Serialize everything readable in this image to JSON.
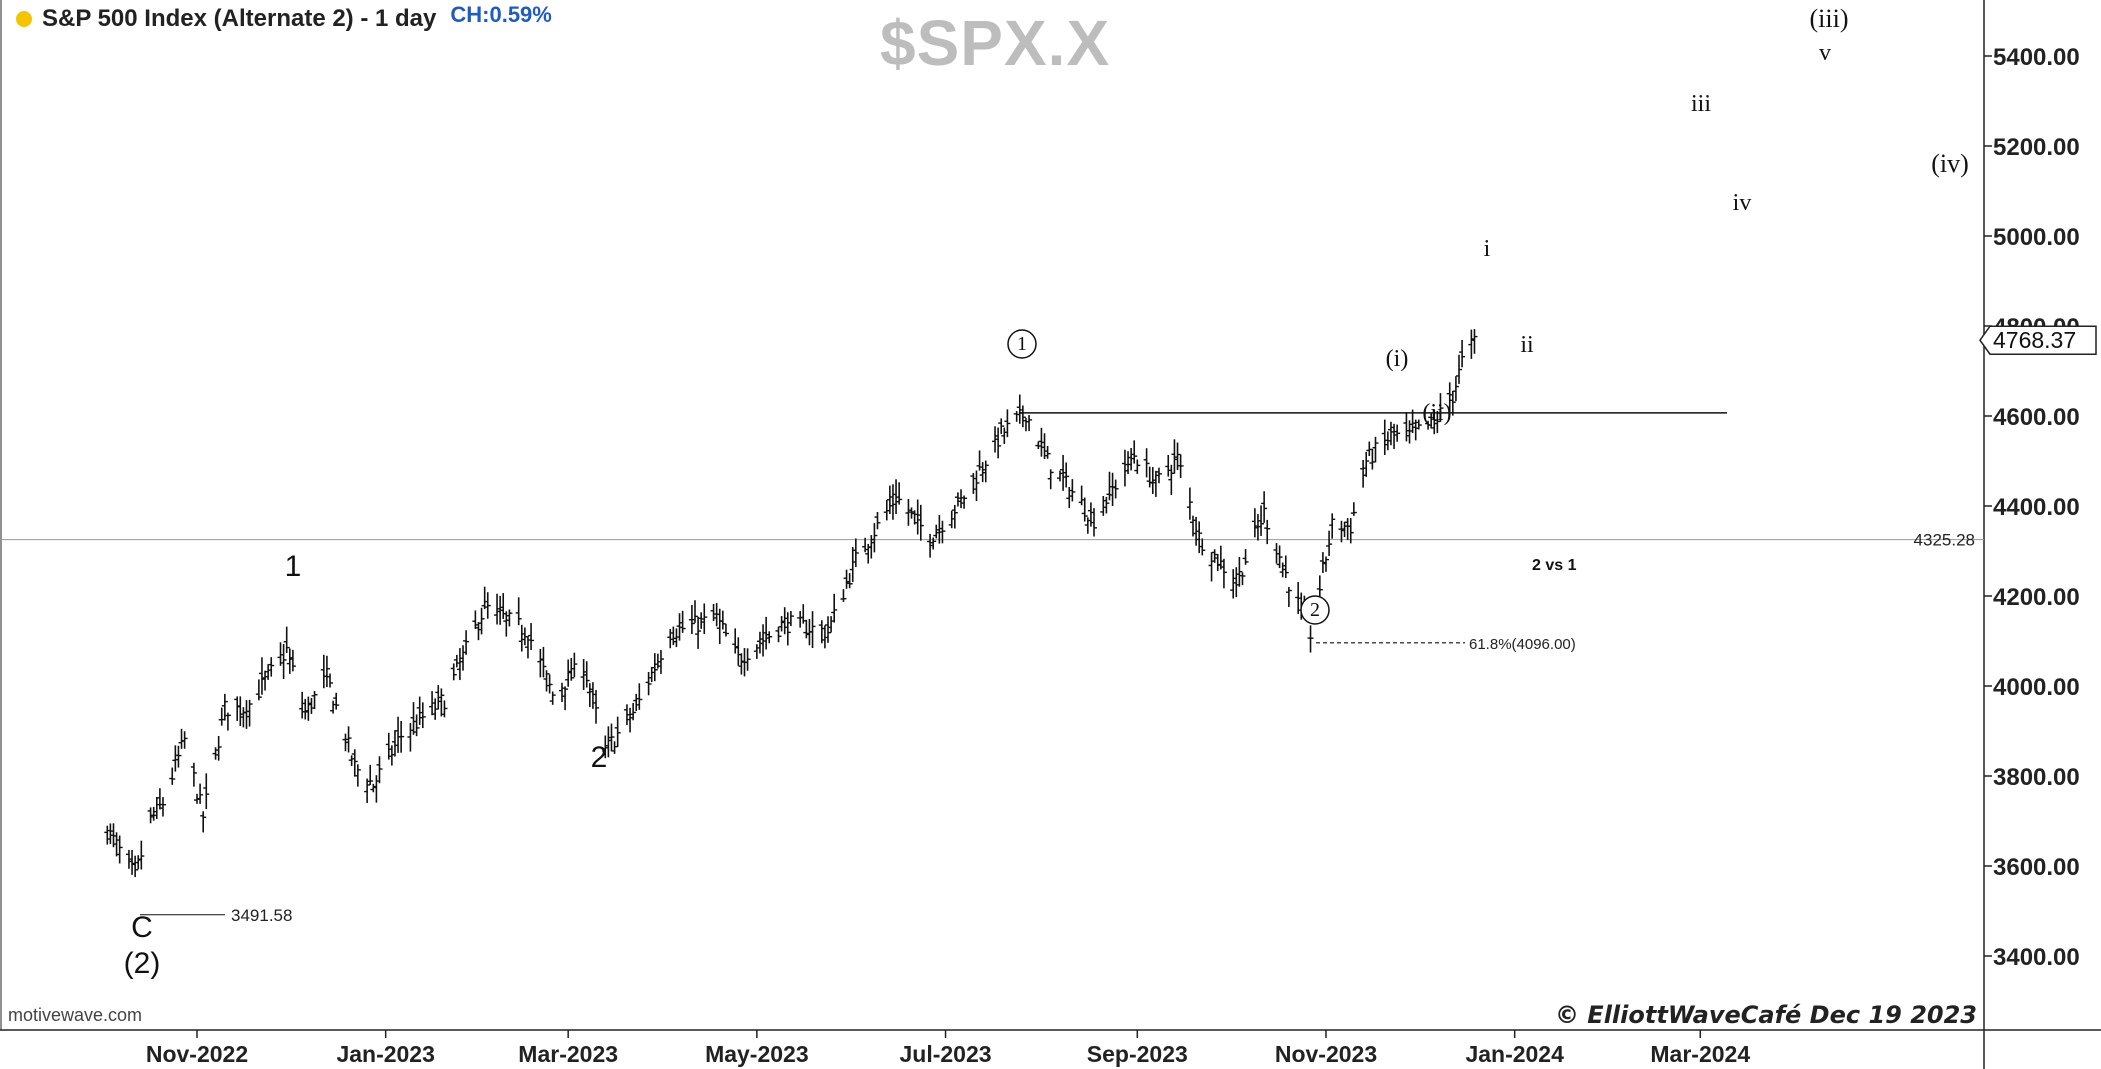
{
  "header": {
    "title": "S&P 500 Index (Alternate 2) - 1 day",
    "change": "CH:0.59%",
    "symbol": "$SPX.X"
  },
  "footer": {
    "source": "motivewave.com",
    "copyright": "© ElliottWaveCafé Dec 19 2023"
  },
  "colors": {
    "status_dot": "#f5c400",
    "change_text": "#1e5bc6",
    "watermark": "#bdbdbd",
    "bars": "#111111"
  },
  "chart_data": {
    "type": "ohlc",
    "title": "",
    "xlabel": "",
    "ylabel": "",
    "y_range": [
      3250,
      5500
    ],
    "y_ticks": [
      "5400.00",
      "5200.00",
      "5000.00",
      "4800.00",
      "4600.00",
      "4400.00",
      "4200.00",
      "4000.00",
      "3800.00",
      "3600.00",
      "3400.00"
    ],
    "x_ticks": [
      "Nov-2022",
      "Jan-2023",
      "Mar-2023",
      "May-2023",
      "Jul-2023",
      "Sep-2023",
      "Nov-2023",
      "Jan-2024",
      "Mar-2024"
    ],
    "current_price": "4768.37",
    "h_reference": {
      "value": 4325.28,
      "label": "4325.28"
    },
    "wave_1_level": 4607,
    "low_marker": {
      "value": 3491.58,
      "label": "3491.58"
    },
    "fib_level": {
      "value": 4096,
      "label": "61.8%(4096.00)",
      "note": "2 vs 1"
    },
    "wave_labels": [
      "C",
      "(2)",
      "1",
      "2",
      "1",
      "2",
      "(i)",
      "(ii)",
      "i",
      "ii",
      "iii",
      "iv",
      "v",
      "(iii)",
      "(iv)"
    ],
    "price_path": [
      {
        "date": "2022-10-03",
        "value": 3680
      },
      {
        "date": "2022-10-12",
        "value": 3575
      },
      {
        "date": "2022-10-17",
        "value": 3700
      },
      {
        "date": "2022-10-21",
        "value": 3740
      },
      {
        "date": "2022-10-28",
        "value": 3880
      },
      {
        "date": "2022-11-03",
        "value": 3710
      },
      {
        "date": "2022-11-10",
        "value": 3950
      },
      {
        "date": "2022-11-17",
        "value": 3950
      },
      {
        "date": "2022-11-30",
        "value": 4080
      },
      {
        "date": "2022-12-06",
        "value": 3940
      },
      {
        "date": "2022-12-13",
        "value": 4020
      },
      {
        "date": "2022-12-22",
        "value": 3820
      },
      {
        "date": "2022-12-28",
        "value": 3780
      },
      {
        "date": "2023-01-06",
        "value": 3890
      },
      {
        "date": "2023-01-20",
        "value": 3970
      },
      {
        "date": "2023-02-02",
        "value": 4175
      },
      {
        "date": "2023-02-16",
        "value": 4120
      },
      {
        "date": "2023-02-24",
        "value": 3980
      },
      {
        "date": "2023-03-06",
        "value": 4050
      },
      {
        "date": "2023-03-13",
        "value": 3855
      },
      {
        "date": "2023-03-23",
        "value": 3950
      },
      {
        "date": "2023-04-03",
        "value": 4120
      },
      {
        "date": "2023-04-18",
        "value": 4150
      },
      {
        "date": "2023-04-25",
        "value": 4060
      },
      {
        "date": "2023-05-10",
        "value": 4140
      },
      {
        "date": "2023-05-24",
        "value": 4120
      },
      {
        "date": "2023-06-02",
        "value": 4280
      },
      {
        "date": "2023-06-15",
        "value": 4420
      },
      {
        "date": "2023-06-26",
        "value": 4330
      },
      {
        "date": "2023-07-06",
        "value": 4410
      },
      {
        "date": "2023-07-19",
        "value": 4560
      },
      {
        "date": "2023-07-27",
        "value": 4607
      },
      {
        "date": "2023-08-03",
        "value": 4500
      },
      {
        "date": "2023-08-18",
        "value": 4370
      },
      {
        "date": "2023-08-31",
        "value": 4515
      },
      {
        "date": "2023-09-07",
        "value": 4450
      },
      {
        "date": "2023-09-14",
        "value": 4505
      },
      {
        "date": "2023-09-21",
        "value": 4330
      },
      {
        "date": "2023-10-03",
        "value": 4230
      },
      {
        "date": "2023-10-12",
        "value": 4385
      },
      {
        "date": "2023-10-20",
        "value": 4230
      },
      {
        "date": "2023-10-27",
        "value": 4117
      },
      {
        "date": "2023-11-03",
        "value": 4355
      },
      {
        "date": "2023-11-09",
        "value": 4355
      },
      {
        "date": "2023-11-14",
        "value": 4500
      },
      {
        "date": "2023-11-22",
        "value": 4555
      },
      {
        "date": "2023-11-28",
        "value": 4555
      },
      {
        "date": "2023-12-06",
        "value": 4585
      },
      {
        "date": "2023-12-12",
        "value": 4645
      },
      {
        "date": "2023-12-15",
        "value": 4720
      },
      {
        "date": "2023-12-19",
        "value": 4768
      }
    ]
  }
}
